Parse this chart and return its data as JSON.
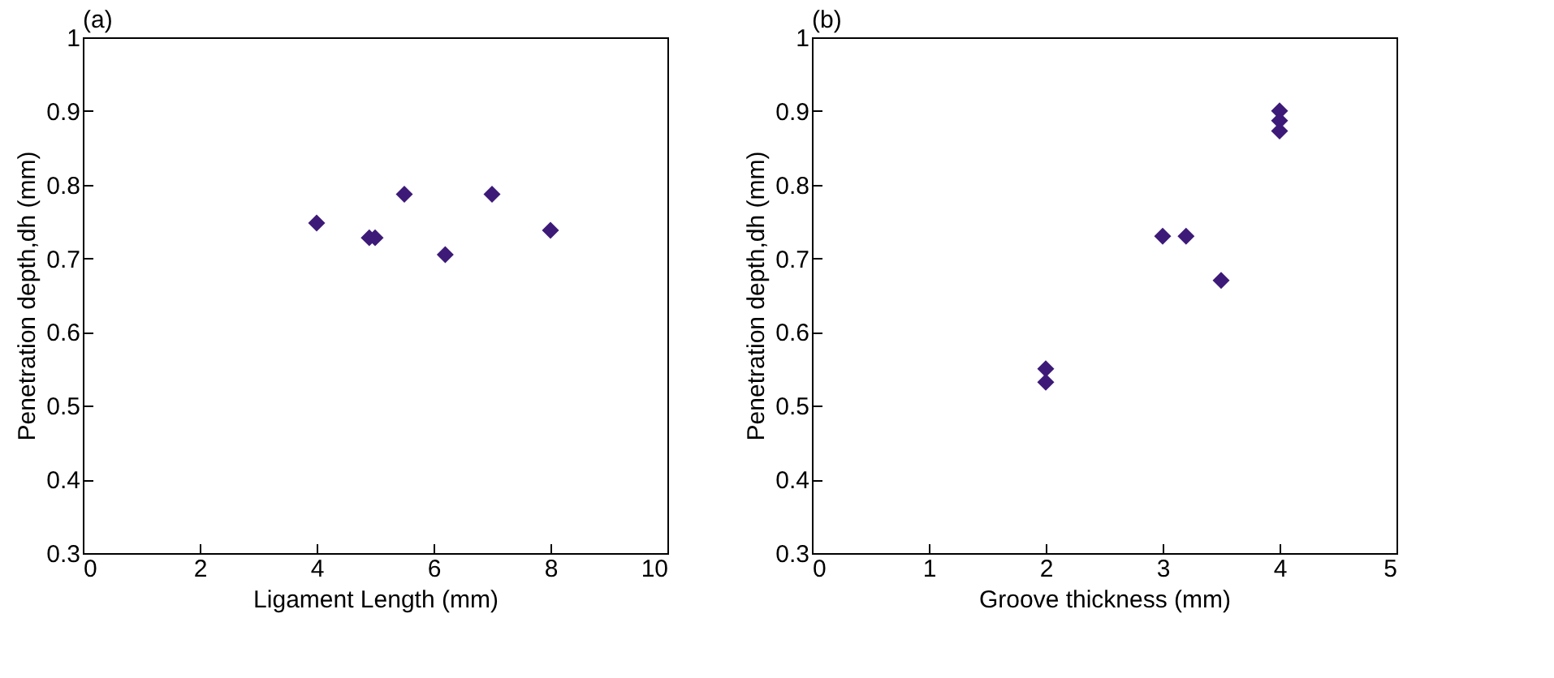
{
  "chart_data": [
    {
      "type": "scatter",
      "title": "(a)",
      "xlabel": "Ligament Length (mm)",
      "ylabel": "Penetration depth,dh (mm)",
      "x": [
        4,
        4.9,
        5,
        5.5,
        6.2,
        7,
        8
      ],
      "xlim": [
        0,
        10
      ],
      "xticks": [
        0,
        2,
        4,
        6,
        8,
        10
      ],
      "ylim": [
        0.3,
        1
      ],
      "yticks": [
        0.3,
        0.4,
        0.5,
        0.6,
        0.7,
        0.8,
        0.9,
        {
          "value": 1,
          "label": "1"
        }
      ],
      "marker": "diamond",
      "series": [
        {
          "color": "#3d1a78",
          "values": [
            0.748,
            0.728,
            0.728,
            0.787,
            0.705,
            0.787,
            0.738
          ]
        }
      ]
    },
    {
      "type": "scatter",
      "title": "(b)",
      "xlabel": "Groove thickness (mm)",
      "ylabel": "Penetration depth,dh (mm)",
      "x": [
        2,
        2,
        3,
        3.2,
        3.5,
        4,
        4,
        4
      ],
      "xlim": [
        0,
        5
      ],
      "xticks": [
        0,
        1,
        2,
        3,
        4,
        5
      ],
      "ylim": [
        0.3,
        1
      ],
      "yticks": [
        0.3,
        0.4,
        0.5,
        0.6,
        0.7,
        0.8,
        0.9,
        {
          "value": 1,
          "label": "1"
        }
      ],
      "marker": "diamond",
      "series": [
        {
          "color": "#3d1a78",
          "values": [
            0.55,
            0.532,
            0.73,
            0.73,
            0.67,
            0.9,
            0.887,
            0.873
          ]
        }
      ]
    }
  ]
}
